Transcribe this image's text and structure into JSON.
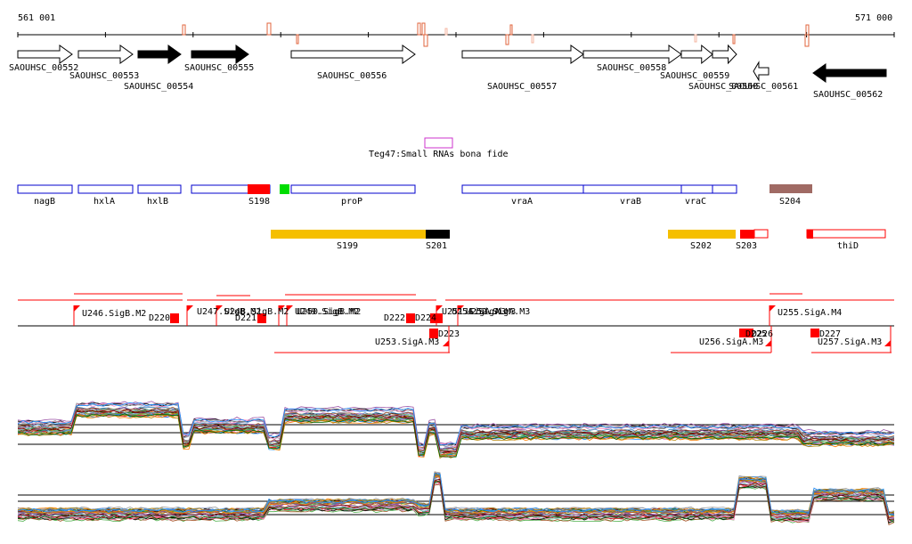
{
  "ruler": {
    "start_label": "561 001",
    "end_label": "571 000"
  },
  "genes": [
    {
      "id": "SAOUHSC_00552",
      "strand": "+",
      "filled": false
    },
    {
      "id": "SAOUHSC_00553",
      "strand": "+",
      "filled": false
    },
    {
      "id": "SAOUHSC_00554",
      "strand": "+",
      "filled": true
    },
    {
      "id": "SAOUHSC_00555",
      "strand": "+",
      "filled": true
    },
    {
      "id": "SAOUHSC_00556",
      "strand": "+",
      "filled": false
    },
    {
      "id": "SAOUHSC_00557",
      "strand": "+",
      "filled": false
    },
    {
      "id": "SAOUHSC_00558",
      "strand": "+",
      "filled": false
    },
    {
      "id": "SAOUHSC_00559",
      "strand": "+",
      "filled": false
    },
    {
      "id": "SAOUHSC_00560",
      "strand": "+",
      "filled": false
    },
    {
      "id": "SAOUHSC_00561",
      "strand": "-",
      "filled": false
    },
    {
      "id": "SAOUHSC_00562",
      "strand": "-",
      "filled": true
    }
  ],
  "small_rna": {
    "label": "Teg47:Small RNAs bona fide"
  },
  "annotations": [
    {
      "label": "nagB"
    },
    {
      "label": "hxlA"
    },
    {
      "label": "hxlB"
    },
    {
      "label": "S198"
    },
    {
      "label": "proP"
    },
    {
      "label": "vraA"
    },
    {
      "label": "vraB"
    },
    {
      "label": "vraC"
    },
    {
      "label": "S204"
    }
  ],
  "segments": [
    {
      "label": "S199"
    },
    {
      "label": "S201"
    },
    {
      "label": "S202"
    },
    {
      "label": "S203"
    },
    {
      "label": "thiD"
    }
  ],
  "promoters": [
    {
      "label": "U246.SigB.M2"
    },
    {
      "label": "D220"
    },
    {
      "label": "U247.SigB.M2"
    },
    {
      "label": "U248.SigB.M2"
    },
    {
      "label": "D221"
    },
    {
      "label": "U249.SigB.M2"
    },
    {
      "label": "U250.SigB.M2"
    },
    {
      "label": "U251.SigA.M3"
    },
    {
      "label": "D222"
    },
    {
      "label": "D224"
    },
    {
      "label": "U252.SigA.M3"
    },
    {
      "label": "U253.SigA.M3"
    },
    {
      "label": "U254.SigA.M3"
    },
    {
      "label": "D223"
    },
    {
      "label": "U255.SigA.M4"
    },
    {
      "label": "U256.SigA.M3"
    },
    {
      "label": "D225"
    },
    {
      "label": "D226"
    },
    {
      "label": "D227"
    },
    {
      "label": "U257.SigA.M3"
    }
  ],
  "colors": {
    "gene_filled": "#000000",
    "annotation_box": "#0000cc",
    "accent_red": "#ff0000",
    "segment_yellow": "#f5bf00",
    "s204": "#a06a64",
    "small_rna": "#cc33cc",
    "green_mark": "#00dd00"
  }
}
